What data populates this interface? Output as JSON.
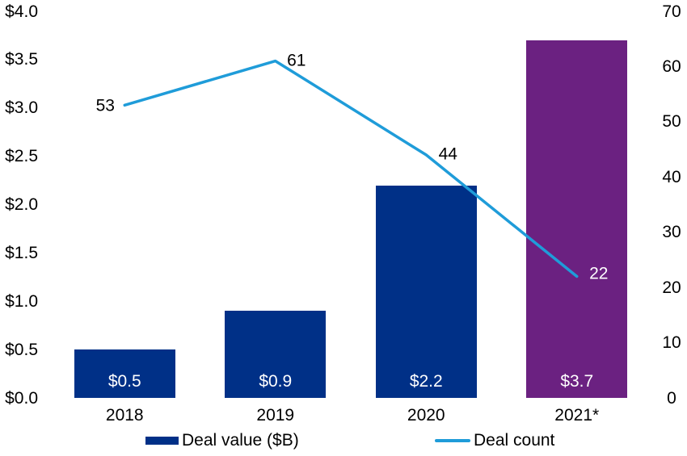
{
  "chart_data": {
    "type": "combo-bar-line",
    "title": "",
    "categories": [
      "2018",
      "2019",
      "2020",
      "2021*"
    ],
    "series": [
      {
        "name": "Deal value ($B)",
        "type": "bar",
        "axis": "left",
        "values": [
          0.5,
          0.9,
          2.2,
          3.7
        ],
        "data_labels": [
          "$0.5",
          "$0.9",
          "$2.2",
          "$3.7"
        ],
        "data_label_color": "#ffffff",
        "bar_colors": [
          "#003087",
          "#003087",
          "#003087",
          "#6B2181"
        ]
      },
      {
        "name": "Deal count",
        "type": "line",
        "axis": "right",
        "values": [
          53,
          61,
          44,
          22
        ],
        "data_labels": [
          "53",
          "61",
          "44",
          "22"
        ],
        "data_label_colors": [
          "#000000",
          "#000000",
          "#000000",
          "#ffffff"
        ],
        "color": "#1F9CD9"
      }
    ],
    "left_axis": {
      "min": 0,
      "max": 4,
      "step": 0.5,
      "tick_labels": [
        "$0.0",
        "$0.5",
        "$1.0",
        "$1.5",
        "$2.0",
        "$2.5",
        "$3.0",
        "$3.5",
        "$4.0"
      ]
    },
    "right_axis": {
      "min": 0,
      "max": 70,
      "step": 10,
      "tick_labels": [
        "0",
        "10",
        "20",
        "30",
        "40",
        "50",
        "60",
        "70"
      ]
    },
    "grid": false,
    "legend": {
      "position": "bottom",
      "items": [
        {
          "label": "Deal value ($B)",
          "swatch": "bar",
          "color": "#003087"
        },
        {
          "label": "Deal count",
          "swatch": "line",
          "color": "#1F9CD9"
        }
      ]
    }
  }
}
